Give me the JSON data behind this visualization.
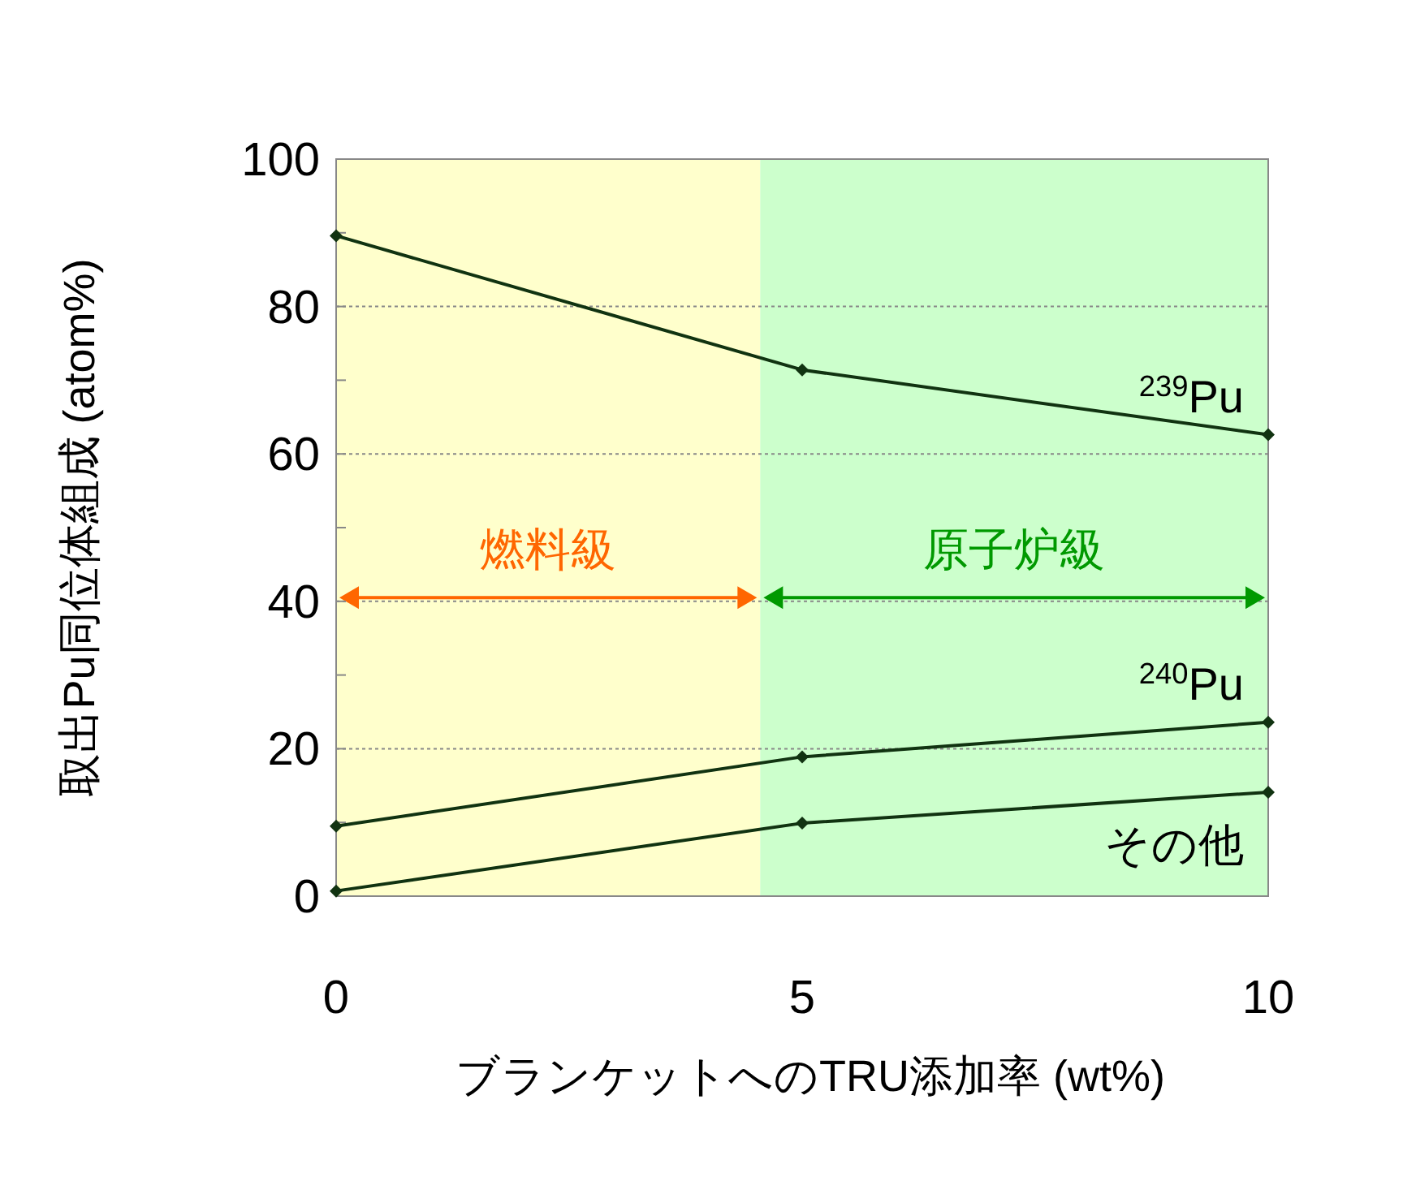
{
  "chart_data": {
    "type": "line",
    "xlabel": "ブランケットへのTRU添加率 (wt%)",
    "ylabel": "取出Pu同位体組成 (atom%)",
    "x": [
      0,
      5,
      10
    ],
    "series": [
      {
        "name": "$^{239}$Pu",
        "color": "#113311",
        "values": [
          89.6,
          71.4,
          62.6
        ]
      },
      {
        "name": "$^{240}$Pu",
        "color": "#113311",
        "values": [
          9.5,
          18.9,
          23.6
        ]
      },
      {
        "name": "その他",
        "color": "#113311",
        "values": [
          0.7,
          9.9,
          14.1
        ]
      }
    ],
    "xlim": [
      0,
      10
    ],
    "ylim": [
      0,
      100
    ],
    "xticks": [
      0,
      5,
      10
    ],
    "yticks": [
      0,
      {
        "value": 10,
        "label": null
      },
      20,
      {
        "value": 30,
        "label": null
      },
      40,
      {
        "value": 50,
        "label": null
      },
      60,
      {
        "value": 70,
        "label": null
      },
      80,
      {
        "value": 90,
        "label": null
      },
      100
    ],
    "grid": "y",
    "marker": "diamond",
    "line_style": "solid",
    "bands": [
      {
        "axis": "x",
        "from": 0,
        "to": 4.55,
        "label": "燃料級",
        "color": "#ffffcc"
      },
      {
        "axis": "x",
        "from": 4.55,
        "to": 10,
        "label": "原子炉級",
        "color": "#ccffcc"
      }
    ]
  }
}
